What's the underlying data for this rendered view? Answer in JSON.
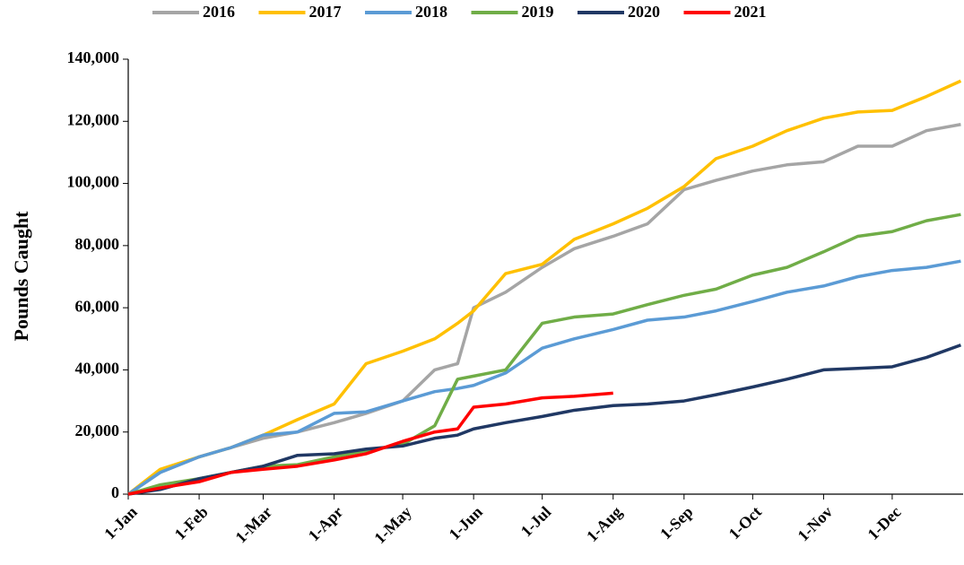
{
  "chart_data": {
    "type": "line",
    "y_label": "Pounds Caught",
    "x": [
      1,
      15,
      32,
      46,
      60,
      75,
      91,
      105,
      121,
      135,
      145,
      152,
      166,
      182,
      196,
      213,
      228,
      244,
      258,
      274,
      289,
      305,
      320,
      335,
      350,
      365
    ],
    "xlim": [
      1,
      366
    ],
    "xticks": [
      {
        "value": 1,
        "label": "1-Jan"
      },
      {
        "value": 32,
        "label": "1-Feb"
      },
      {
        "value": 60,
        "label": "1-Mar"
      },
      {
        "value": 91,
        "label": "1-Apr"
      },
      {
        "value": 121,
        "label": "1-May"
      },
      {
        "value": 152,
        "label": "1-Jun"
      },
      {
        "value": 182,
        "label": "1-Jul"
      },
      {
        "value": 213,
        "label": "1-Aug"
      },
      {
        "value": 244,
        "label": "1-Sep"
      },
      {
        "value": 274,
        "label": "1-Oct"
      },
      {
        "value": 305,
        "label": "1-Nov"
      },
      {
        "value": 335,
        "label": "1-Dec"
      }
    ],
    "ylim": [
      0,
      140000
    ],
    "yticks": [
      0,
      {
        "value": 20000,
        "label": "20,000"
      },
      {
        "value": 40000,
        "label": "40,000"
      },
      {
        "value": 60000,
        "label": "60,000"
      },
      {
        "value": 80000,
        "label": "80,000"
      },
      {
        "value": 100000,
        "label": "100,000"
      },
      {
        "value": 120000,
        "label": "120,000"
      },
      {
        "value": 140000,
        "label": "140,000"
      }
    ],
    "grid": false,
    "legend": "top",
    "series": [
      {
        "name": "2016",
        "color": "#a5a5a5",
        "values": [
          0,
          7000,
          12000,
          15000,
          18000,
          20000,
          23000,
          26000,
          30000,
          40000,
          42000,
          60000,
          65000,
          73000,
          79000,
          83000,
          87000,
          98000,
          101000,
          104000,
          106000,
          107000,
          112000,
          112000,
          117000,
          119000
        ]
      },
      {
        "name": "2017",
        "color": "#ffc000",
        "values": [
          0,
          8000,
          12000,
          15000,
          19000,
          24000,
          29000,
          42000,
          46000,
          50000,
          55000,
          59000,
          71000,
          74000,
          82000,
          87000,
          92000,
          99000,
          108000,
          112000,
          117000,
          121000,
          123000,
          123500,
          128000,
          133000
        ]
      },
      {
        "name": "2018",
        "color": "#5b9bd5",
        "values": [
          0,
          7000,
          12000,
          15000,
          19000,
          20000,
          26000,
          26500,
          30000,
          33000,
          34000,
          35000,
          39000,
          47000,
          50000,
          53000,
          56000,
          57000,
          59000,
          62000,
          65000,
          67000,
          70000,
          72000,
          73000,
          75000
        ]
      },
      {
        "name": "2019",
        "color": "#70ad47",
        "values": [
          0,
          3000,
          5000,
          7000,
          9000,
          9500,
          12000,
          14000,
          16000,
          22000,
          37000,
          38000,
          40000,
          55000,
          57000,
          58000,
          61000,
          64000,
          66000,
          70500,
          73000,
          78000,
          83000,
          84500,
          88000,
          90000
        ]
      },
      {
        "name": "2020",
        "color": "#203864",
        "values": [
          0,
          1500,
          5000,
          7000,
          9000,
          12500,
          13000,
          14500,
          15500,
          18000,
          19000,
          21000,
          23000,
          25000,
          27000,
          28500,
          29000,
          30000,
          32000,
          34500,
          37000,
          40000,
          40500,
          41000,
          44000,
          48000
        ]
      },
      {
        "name": "2021",
        "color": "#ff0000",
        "values": [
          0,
          2000,
          4000,
          7000,
          8000,
          9000,
          11000,
          13000,
          17000,
          20000,
          21000,
          28000,
          29000,
          31000,
          31500,
          32500,
          null,
          null,
          null,
          null,
          null,
          null,
          null,
          null,
          null,
          null
        ]
      }
    ]
  }
}
